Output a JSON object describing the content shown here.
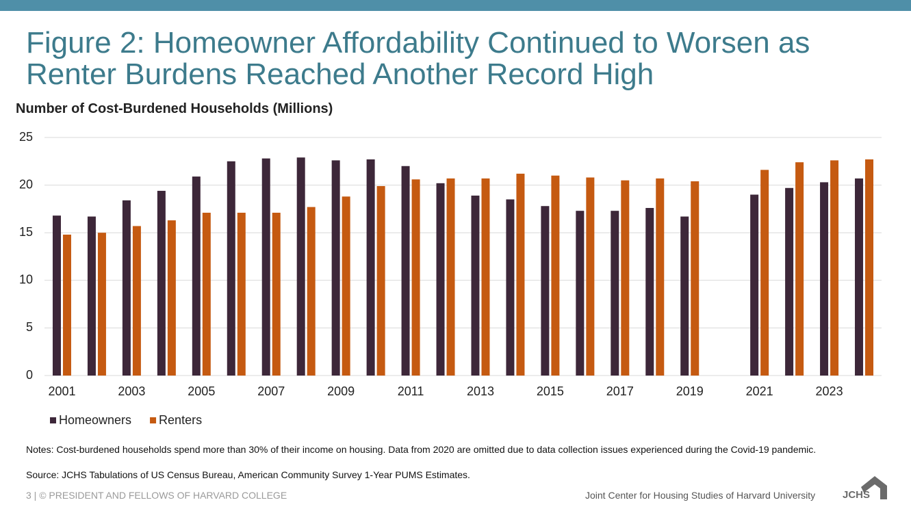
{
  "chart_data": {
    "type": "bar",
    "title": "Figure 2: Homeowner Affordability Continued to Worsen as Renter Burdens Reached Another Record High",
    "y_label": "Number of Cost-Burdened Households (Millions)",
    "categories": [
      "2001",
      null,
      "2003",
      null,
      "2005",
      null,
      "2007",
      null,
      "2009",
      null,
      "2011",
      null,
      "2013",
      null,
      "2015",
      null,
      "2017",
      null,
      "2019",
      null,
      "2021",
      null,
      "2023",
      null
    ],
    "series": [
      {
        "name": "Homeowners",
        "color": "#3d2739",
        "values": [
          16.8,
          16.7,
          18.4,
          19.4,
          20.9,
          22.5,
          22.8,
          22.9,
          22.6,
          22.7,
          22.0,
          20.2,
          18.9,
          18.5,
          17.8,
          17.3,
          17.3,
          17.6,
          16.7,
          null,
          19.0,
          19.7,
          20.3,
          20.7
        ]
      },
      {
        "name": "Renters",
        "color": "#c55a11",
        "values": [
          14.8,
          15.0,
          15.7,
          16.3,
          17.1,
          17.1,
          17.1,
          17.7,
          18.8,
          19.9,
          20.6,
          20.7,
          20.7,
          21.2,
          21.0,
          20.8,
          20.5,
          20.7,
          20.4,
          null,
          21.6,
          22.4,
          22.6,
          22.7
        ]
      }
    ],
    "ylim": [
      0,
      25
    ],
    "yticks": [
      0,
      5,
      10,
      15,
      20,
      25
    ],
    "grid": true,
    "legend": "bottom-left"
  },
  "notes": "Notes: Cost-burdened households spend more than 30% of their income on housing. Data from 2020 are omitted due to data collection issues experienced during the Covid-19 pandemic.",
  "source": "Source: JCHS Tabulations of US Census Bureau, American Community Survey 1-Year PUMS Estimates.",
  "footer": {
    "left": "3 | © PRESIDENT AND FELLOWS OF HARVARD COLLEGE",
    "right": "Joint Center for Housing Studies of Harvard University",
    "logo": "JCHS"
  }
}
